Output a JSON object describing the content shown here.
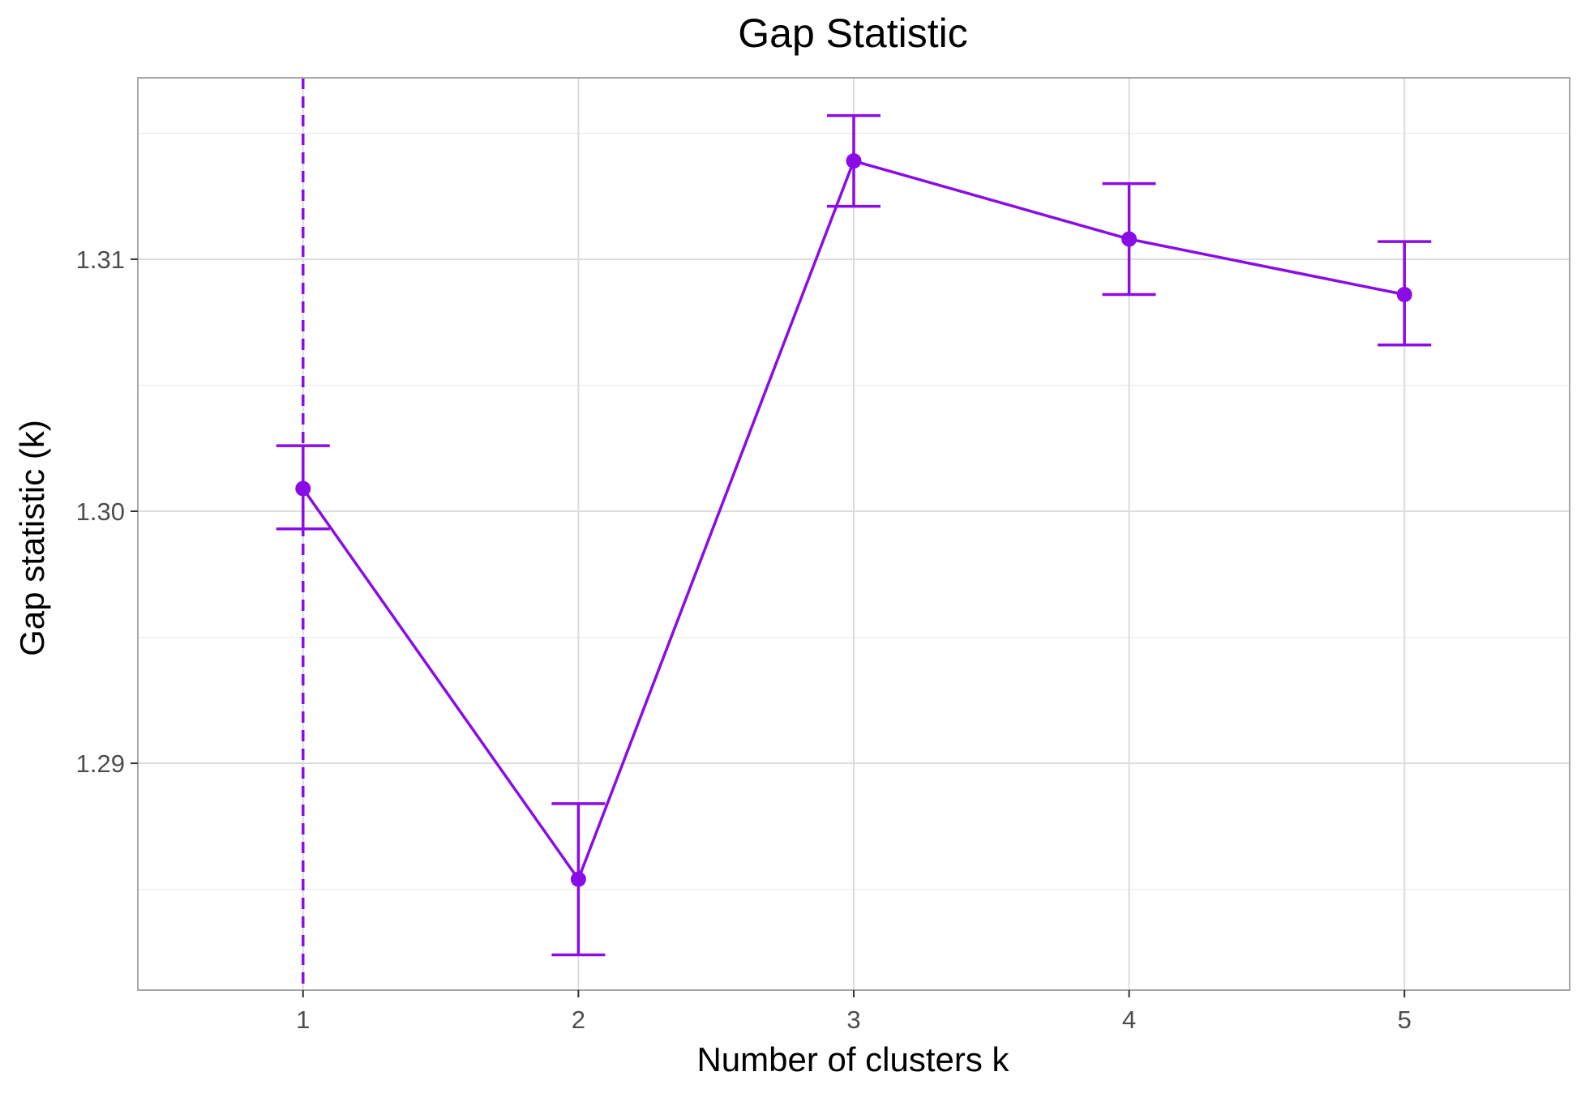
{
  "chart_data": {
    "type": "line",
    "title": "Gap Statistic",
    "xlabel": "Number of clusters k",
    "ylabel": "Gap statistic (k)",
    "x": [
      1,
      2,
      3,
      4,
      5
    ],
    "x_tick_labels": [
      "1",
      "2",
      "3",
      "4",
      "5"
    ],
    "y_ticks": [
      1.29,
      1.3,
      1.31
    ],
    "y_tick_labels": [
      "1.29",
      "1.30",
      "1.31"
    ],
    "xlim": [
      0.4,
      5.6
    ],
    "ylim": [
      1.281,
      1.3172
    ],
    "series": [
      {
        "values": [
          1.3009,
          1.2854,
          1.3139,
          1.3108,
          1.3086
        ],
        "err_low": [
          1.2993,
          1.2824,
          1.3121,
          1.3086,
          1.3066
        ],
        "err_high": [
          1.3026,
          1.2884,
          1.3157,
          1.313,
          1.3107
        ]
      }
    ],
    "optimal_k": 1,
    "grid": true,
    "colors": {
      "series": "#8a0ce6",
      "grid": "#dcdcdc",
      "panel_border": "#a6a6a6"
    }
  }
}
